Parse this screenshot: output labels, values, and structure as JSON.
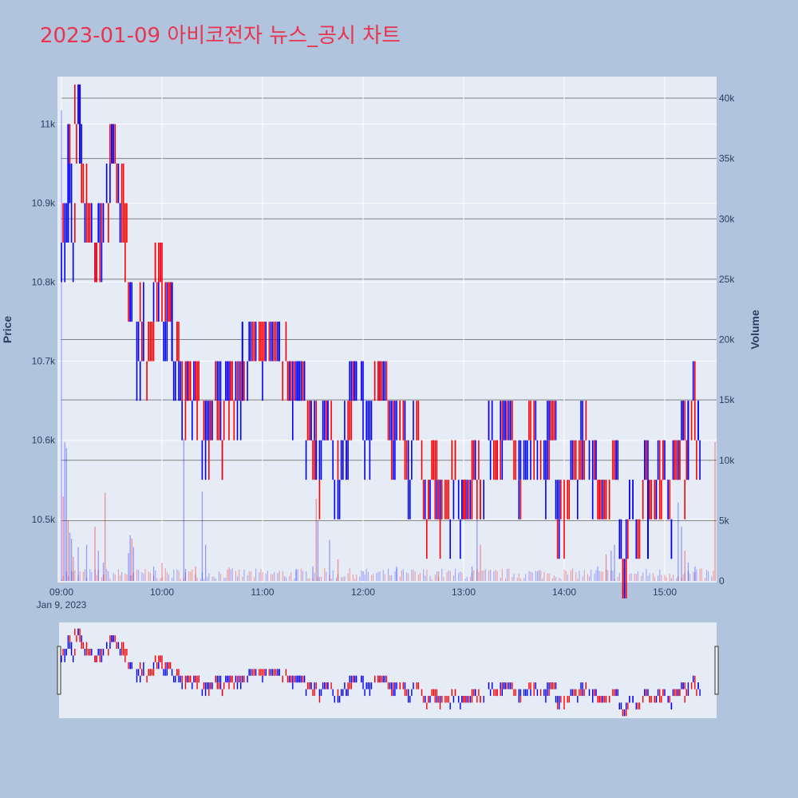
{
  "title": "2023-01-09 아비코전자 뉴스_공시 차트",
  "colors": {
    "background": "#b0c4de",
    "plot_bg": "#e5ecf6",
    "title": "#e8344f",
    "up": "#ff0000",
    "down": "#0000ff",
    "grid_price": "#ffffff",
    "grid_volume": "#808080"
  },
  "chart_data": {
    "type": "candlestick",
    "title": "2023-01-09 아비코전자 뉴스_공시 차트",
    "date_label": "Jan 9, 2023",
    "x_range": [
      "09:00",
      "15:30"
    ],
    "x_ticks": [
      "09:00",
      "10:00",
      "11:00",
      "12:00",
      "13:00",
      "14:00",
      "15:00"
    ],
    "price_axis": {
      "label": "Price",
      "range": [
        10420,
        11060
      ],
      "ticks": [
        10500,
        10600,
        10700,
        10800,
        10900,
        11000
      ],
      "tick_labels": [
        "10.5k",
        "10.6k",
        "10.7k",
        "10.8k",
        "10.9k",
        "11k"
      ]
    },
    "volume_axis": {
      "label": "Volume",
      "range": [
        0,
        40000
      ],
      "ticks": [
        0,
        5000,
        10000,
        15000,
        20000,
        25000,
        30000,
        35000,
        40000
      ],
      "tick_labels": [
        "0",
        "5k",
        "10k",
        "15k",
        "20k",
        "25k",
        "30k",
        "35k",
        "40k"
      ]
    },
    "price_path": [
      [
        "09:00",
        10850
      ],
      [
        "09:03",
        10950
      ],
      [
        "09:06",
        10850
      ],
      [
        "09:08",
        11000
      ],
      [
        "09:11",
        10950
      ],
      [
        "09:13",
        10900
      ],
      [
        "09:16",
        10850
      ],
      [
        "09:18",
        10800
      ],
      [
        "09:22",
        10850
      ],
      [
        "09:26",
        10900
      ],
      [
        "09:29",
        10950
      ],
      [
        "09:33",
        10900
      ],
      [
        "09:37",
        10850
      ],
      [
        "09:39",
        10800
      ],
      [
        "09:40",
        10750
      ],
      [
        "09:43",
        10700
      ],
      [
        "09:47",
        10750
      ],
      [
        "09:51",
        10700
      ],
      [
        "09:55",
        10800
      ],
      [
        "10:00",
        10750
      ],
      [
        "10:06",
        10700
      ],
      [
        "10:11",
        10650
      ],
      [
        "10:20",
        10650
      ],
      [
        "10:24",
        10600
      ],
      [
        "10:30",
        10650
      ],
      [
        "10:35",
        10600
      ],
      [
        "10:38",
        10650
      ],
      [
        "10:45",
        10650
      ],
      [
        "10:52",
        10700
      ],
      [
        "11:05",
        10700
      ],
      [
        "11:15",
        10650
      ],
      [
        "11:20",
        10650
      ],
      [
        "11:26",
        10600
      ],
      [
        "11:30",
        10600
      ],
      [
        "11:32",
        10550
      ],
      [
        "11:36",
        10600
      ],
      [
        "11:42",
        10550
      ],
      [
        "11:48",
        10600
      ],
      [
        "11:52",
        10650
      ],
      [
        "12:00",
        10600
      ],
      [
        "12:05",
        10650
      ],
      [
        "12:12",
        10650
      ],
      [
        "12:15",
        10600
      ],
      [
        "12:25",
        10550
      ],
      [
        "12:30",
        10600
      ],
      [
        "12:35",
        10500
      ],
      [
        "12:40",
        10550
      ],
      [
        "12:45",
        10500
      ],
      [
        "12:52",
        10550
      ],
      [
        "12:58",
        10500
      ],
      [
        "13:05",
        10550
      ],
      [
        "13:10",
        10500
      ],
      [
        "13:12",
        10600
      ],
      [
        "13:18",
        10550
      ],
      [
        "13:22",
        10600
      ],
      [
        "13:30",
        10550
      ],
      [
        "13:38",
        10600
      ],
      [
        "13:45",
        10550
      ],
      [
        "13:50",
        10600
      ],
      [
        "13:55",
        10500
      ],
      [
        "14:02",
        10550
      ],
      [
        "14:10",
        10600
      ],
      [
        "14:14",
        10550
      ],
      [
        "14:18",
        10550
      ],
      [
        "14:22",
        10500
      ],
      [
        "14:28",
        10550
      ],
      [
        "14:32",
        10450
      ],
      [
        "14:38",
        10500
      ],
      [
        "14:42",
        10450
      ],
      [
        "14:46",
        10550
      ],
      [
        "14:50",
        10500
      ],
      [
        "14:55",
        10550
      ],
      [
        "15:00",
        10500
      ],
      [
        "15:05",
        10550
      ],
      [
        "15:10",
        10600
      ],
      [
        "15:12",
        10550
      ],
      [
        "15:14",
        10600
      ],
      [
        "15:16",
        10650
      ],
      [
        "15:18",
        10600
      ]
    ],
    "volume_spikes": [
      [
        "09:00",
        39000
      ],
      [
        "09:01",
        7000
      ],
      [
        "09:02",
        11500
      ],
      [
        "09:03",
        11000
      ],
      [
        "09:04",
        5000
      ],
      [
        "09:05",
        4000
      ],
      [
        "09:06",
        3500
      ],
      [
        "09:07",
        2000
      ],
      [
        "09:10",
        2800
      ],
      [
        "09:15",
        3000
      ],
      [
        "09:20",
        4500
      ],
      [
        "09:22",
        2500
      ],
      [
        "09:25",
        1500
      ],
      [
        "09:26",
        7300
      ],
      [
        "09:40",
        2300
      ],
      [
        "09:41",
        3800
      ],
      [
        "09:42",
        3500
      ],
      [
        "09:43",
        2800
      ],
      [
        "09:55",
        1200
      ],
      [
        "10:00",
        1500
      ],
      [
        "10:14",
        1000
      ],
      [
        "10:13",
        11800
      ],
      [
        "10:20",
        1200
      ],
      [
        "10:24",
        7400
      ],
      [
        "10:26",
        3000
      ],
      [
        "10:40",
        1100
      ],
      [
        "11:20",
        1000
      ],
      [
        "11:30",
        1200
      ],
      [
        "11:32",
        6800
      ],
      [
        "11:33",
        5000
      ],
      [
        "11:40",
        3400
      ],
      [
        "11:45",
        1800
      ],
      [
        "12:00",
        800
      ],
      [
        "12:20",
        1200
      ],
      [
        "12:45",
        800
      ],
      [
        "13:05",
        1200
      ],
      [
        "13:08",
        5500
      ],
      [
        "13:10",
        3000
      ],
      [
        "13:45",
        900
      ],
      [
        "14:20",
        1200
      ],
      [
        "14:25",
        2200
      ],
      [
        "14:28",
        2500
      ],
      [
        "14:30",
        3000
      ],
      [
        "14:35",
        1800
      ],
      [
        "15:08",
        6500
      ],
      [
        "15:10",
        4500
      ],
      [
        "15:12",
        2500
      ],
      [
        "15:14",
        1500
      ],
      [
        "15:18",
        1200
      ],
      [
        "15:30",
        11500
      ]
    ]
  }
}
